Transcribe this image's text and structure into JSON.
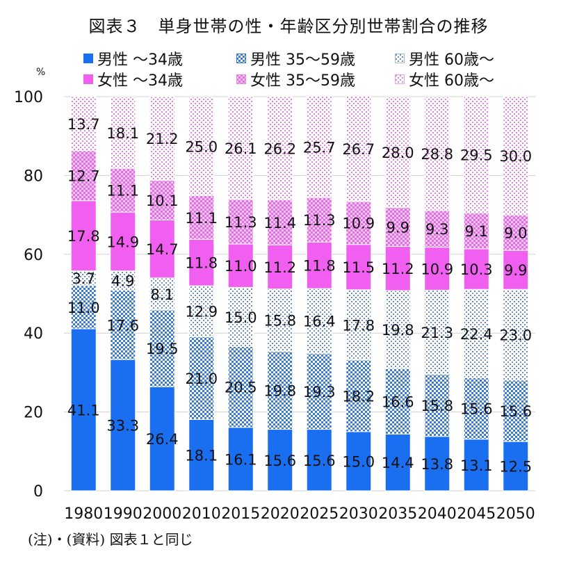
{
  "title": "図表３　単身世帯の性・年齢区分別世帯割合の推移",
  "unit_label": "%",
  "note": "(注)・(資料)  図表１と同じ",
  "colors": {
    "male_u34": "#1a6ef0",
    "male_35_59": "#3b7bd8",
    "male_60": "#9fb9d8",
    "female_u34": "#f05ff0",
    "female_35_59": "#e889e8",
    "female_60": "#e9a0e9",
    "grid": "#d0d0d0"
  },
  "chart_data": {
    "type": "bar",
    "stacked": true,
    "categories": [
      "1980",
      "1990",
      "2000",
      "2010",
      "2015",
      "2020",
      "2025",
      "2030",
      "2035",
      "2040",
      "2045",
      "2050"
    ],
    "ylim": [
      0,
      100
    ],
    "yticks": [
      "0",
      "20",
      "40",
      "60",
      "80",
      "100"
    ],
    "ytick_values": [
      0,
      20,
      40,
      60,
      80,
      100
    ],
    "grid": true,
    "legend_position": "top",
    "series": [
      {
        "name": "男性 ～34歳",
        "key": "male_u34",
        "values": [
          41.1,
          33.3,
          26.4,
          18.1,
          16.1,
          15.6,
          15.6,
          15.0,
          14.4,
          13.8,
          13.1,
          12.5
        ],
        "labels": [
          "41.1",
          "33.3",
          "26.4",
          "18.1",
          "16.1",
          "15.6",
          "15.6",
          "15.0",
          "14.4",
          "13.8",
          "13.1",
          "12.5"
        ]
      },
      {
        "name": "男性 35～59歳",
        "key": "male_35_59",
        "values": [
          11.0,
          17.6,
          19.5,
          21.0,
          20.5,
          19.8,
          19.3,
          18.2,
          16.6,
          15.8,
          15.6,
          15.6
        ],
        "labels": [
          "11.0",
          "17.6",
          "19.5",
          "21.0",
          "20.5",
          "19.8",
          "19.3",
          "18.2",
          "16.6",
          "15.8",
          "15.6",
          "15.6"
        ]
      },
      {
        "name": "男性 60歳～",
        "key": "male_60",
        "values": [
          3.7,
          4.9,
          8.1,
          12.9,
          15.0,
          15.8,
          16.4,
          17.8,
          19.8,
          21.3,
          22.4,
          23.0
        ],
        "labels": [
          "3.7",
          "4.9",
          "8.1",
          "12.9",
          "15.0",
          "15.8",
          "16.4",
          "17.8",
          "19.8",
          "21.3",
          "22.4",
          "23.0"
        ]
      },
      {
        "name": "女性 ～34歳",
        "key": "female_u34",
        "values": [
          17.8,
          14.9,
          14.7,
          11.8,
          11.0,
          11.2,
          11.8,
          11.5,
          11.2,
          10.9,
          10.3,
          9.9
        ],
        "labels": [
          "17.8",
          "14.9",
          "14.7",
          "11.8",
          "11.0",
          "11.2",
          "11.8",
          "11.5",
          "11.2",
          "10.9",
          "10.3",
          "9.9"
        ]
      },
      {
        "name": "女性 35～59歳",
        "key": "female_35_59",
        "values": [
          12.7,
          11.1,
          10.1,
          11.1,
          11.3,
          11.4,
          11.3,
          10.9,
          9.9,
          9.3,
          9.1,
          9.0
        ],
        "labels": [
          "12.7",
          "11.1",
          "10.1",
          "11.1",
          "11.3",
          "11.4",
          "11.3",
          "10.9",
          "9.9",
          "9.3",
          "9.1",
          "9.0"
        ]
      },
      {
        "name": "女性 60歳～",
        "key": "female_60",
        "values": [
          13.7,
          18.1,
          21.2,
          25.0,
          26.1,
          26.2,
          25.7,
          26.7,
          28.0,
          28.8,
          29.5,
          30.0
        ],
        "labels": [
          "13.7",
          "18.1",
          "21.2",
          "25.0",
          "26.1",
          "26.2",
          "25.7",
          "26.7",
          "28.0",
          "28.8",
          "29.5",
          "30.0"
        ]
      }
    ]
  }
}
